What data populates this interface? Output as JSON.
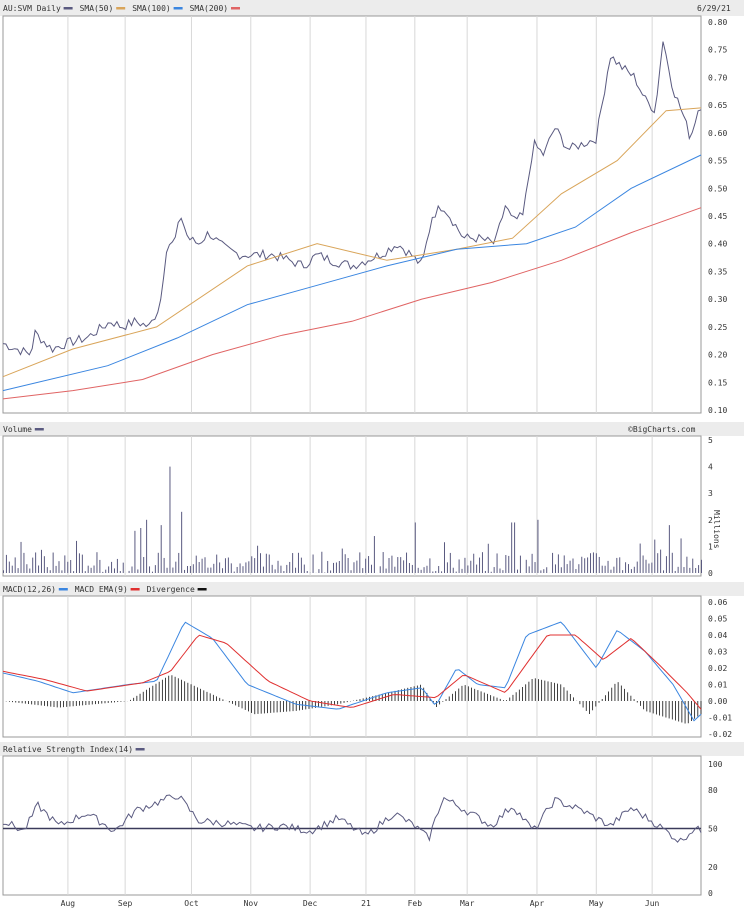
{
  "date_label": "6/29/21",
  "watermark": "©BigCharts.com",
  "colors": {
    "price": "#5a5a80",
    "sma50": "#5a5a80",
    "sma100": "#d9a55a",
    "sma200": "#3b86e0",
    "sma_red": "#e06464",
    "macd": "#3b86e0",
    "ema": "#e03030",
    "divergence": "#111111",
    "grid": "#d8d8d8",
    "header_bg": "#ececec",
    "axis_ref": "#3a3a5a"
  },
  "months": [
    "Aug",
    "Sep",
    "Oct",
    "Nov",
    "Dec",
    "21",
    "Feb",
    "Mar",
    "Apr",
    "May",
    "Jun"
  ],
  "price_panel": {
    "header": [
      {
        "label": "AU:SVM Daily",
        "color_key": "price"
      },
      {
        "label": "SMA(50)",
        "color_key": "sma100"
      },
      {
        "label": "SMA(100)",
        "color_key": "sma200"
      },
      {
        "label": "SMA(200)",
        "color_key": "sma_red"
      }
    ],
    "yticks": [
      "0.80",
      "0.75",
      "0.70",
      "0.65",
      "0.60",
      "0.55",
      "0.50",
      "0.45",
      "0.40",
      "0.35",
      "0.30",
      "0.25",
      "0.20",
      "0.15",
      "0.10"
    ]
  },
  "volume_panel": {
    "header": [
      {
        "label": "Volume",
        "color_key": "price"
      }
    ],
    "yticks": [
      "5",
      "4",
      "3",
      "2",
      "1",
      "0"
    ],
    "unit": "Millions"
  },
  "macd_panel": {
    "header": [
      {
        "label": "MACD(12,26)",
        "color_key": "macd"
      },
      {
        "label": "MACD EMA(9)",
        "color_key": "ema"
      },
      {
        "label": "Divergence",
        "color_key": "divergence"
      }
    ],
    "yticks": [
      "0.06",
      "0.05",
      "0.04",
      "0.03",
      "0.02",
      "0.01",
      "0.00",
      "-0.01",
      "-0.02"
    ]
  },
  "rsi_panel": {
    "header": [
      {
        "label": "Relative Strength Index(14)",
        "color_key": "price"
      }
    ],
    "yticks": [
      "100",
      "80",
      "50",
      "20",
      "0"
    ]
  },
  "chart_data": [
    {
      "type": "line",
      "title": "AU:SVM Daily",
      "x_range": [
        "2020-07",
        "2021-06-29"
      ],
      "ylim": [
        0.1,
        0.8
      ],
      "grid": true,
      "series": [
        {
          "name": "AU:SVM Daily",
          "points": [
            [
              0,
              0.22
            ],
            [
              0.04,
              0.2
            ],
            [
              0.045,
              0.24
            ],
            [
              0.07,
              0.21
            ],
            [
              0.09,
              0.22
            ],
            [
              0.12,
              0.23
            ],
            [
              0.155,
              0.26
            ],
            [
              0.17,
              0.25
            ],
            [
              0.19,
              0.26
            ],
            [
              0.21,
              0.25
            ],
            [
              0.225,
              0.29
            ],
            [
              0.235,
              0.4
            ],
            [
              0.245,
              0.4
            ],
            [
              0.255,
              0.45
            ],
            [
              0.265,
              0.41
            ],
            [
              0.28,
              0.4
            ],
            [
              0.295,
              0.42
            ],
            [
              0.31,
              0.4
            ],
            [
              0.32,
              0.39
            ],
            [
              0.34,
              0.38
            ],
            [
              0.365,
              0.38
            ],
            [
              0.385,
              0.38
            ],
            [
              0.41,
              0.37
            ],
            [
              0.43,
              0.36
            ],
            [
              0.45,
              0.38
            ],
            [
              0.47,
              0.37
            ],
            [
              0.5,
              0.36
            ],
            [
              0.52,
              0.37
            ],
            [
              0.54,
              0.38
            ],
            [
              0.565,
              0.4
            ],
            [
              0.585,
              0.38
            ],
            [
              0.6,
              0.36
            ],
            [
              0.615,
              0.45
            ],
            [
              0.63,
              0.47
            ],
            [
              0.645,
              0.44
            ],
            [
              0.66,
              0.41
            ],
            [
              0.68,
              0.41
            ],
            [
              0.705,
              0.4
            ],
            [
              0.72,
              0.47
            ],
            [
              0.73,
              0.44
            ],
            [
              0.745,
              0.45
            ],
            [
              0.76,
              0.58
            ],
            [
              0.775,
              0.56
            ],
            [
              0.79,
              0.61
            ],
            [
              0.81,
              0.57
            ],
            [
              0.83,
              0.58
            ],
            [
              0.85,
              0.59
            ],
            [
              0.87,
              0.74
            ],
            [
              0.885,
              0.72
            ],
            [
              0.905,
              0.7
            ],
            [
              0.92,
              0.66
            ],
            [
              0.935,
              0.64
            ],
            [
              0.945,
              0.77
            ],
            [
              0.96,
              0.68
            ],
            [
              0.975,
              0.63
            ],
            [
              0.985,
              0.59
            ],
            [
              0.995,
              0.64
            ],
            [
              1.0,
              0.65
            ]
          ]
        },
        {
          "name": "SMA(50)",
          "points": [
            [
              0,
              0.16
            ],
            [
              0.1,
              0.21
            ],
            [
              0.22,
              0.25
            ],
            [
              0.35,
              0.36
            ],
            [
              0.45,
              0.4
            ],
            [
              0.55,
              0.37
            ],
            [
              0.65,
              0.39
            ],
            [
              0.73,
              0.41
            ],
            [
              0.8,
              0.49
            ],
            [
              0.88,
              0.55
            ],
            [
              0.95,
              0.64
            ],
            [
              1.0,
              0.645
            ]
          ]
        },
        {
          "name": "SMA(100)",
          "points": [
            [
              0,
              0.135
            ],
            [
              0.15,
              0.18
            ],
            [
              0.25,
              0.23
            ],
            [
              0.35,
              0.29
            ],
            [
              0.45,
              0.325
            ],
            [
              0.55,
              0.36
            ],
            [
              0.65,
              0.39
            ],
            [
              0.75,
              0.4
            ],
            [
              0.82,
              0.43
            ],
            [
              0.9,
              0.5
            ],
            [
              1.0,
              0.56
            ]
          ]
        },
        {
          "name": "SMA(200)",
          "points": [
            [
              0,
              0.12
            ],
            [
              0.1,
              0.135
            ],
            [
              0.2,
              0.155
            ],
            [
              0.3,
              0.2
            ],
            [
              0.4,
              0.235
            ],
            [
              0.5,
              0.26
            ],
            [
              0.6,
              0.3
            ],
            [
              0.7,
              0.33
            ],
            [
              0.8,
              0.37
            ],
            [
              0.9,
              0.42
            ],
            [
              1.0,
              0.465
            ]
          ]
        }
      ]
    },
    {
      "type": "bar",
      "title": "Volume",
      "ylim": [
        0,
        5
      ],
      "ylabel": "Millions",
      "peaks": [
        [
          0.237,
          4.0
        ],
        [
          0.255,
          2.3
        ],
        [
          0.205,
          2.0
        ],
        [
          0.225,
          1.8
        ],
        [
          0.59,
          1.9
        ],
        [
          0.73,
          1.9
        ],
        [
          0.765,
          2.0
        ],
        [
          0.955,
          1.8
        ],
        [
          0.97,
          1.3
        ]
      ],
      "base_level": 0.4
    },
    {
      "type": "line",
      "title": "MACD(12,26)",
      "ylim": [
        -0.02,
        0.06
      ],
      "series": [
        {
          "name": "MACD(12,26)",
          "points": [
            [
              0,
              0.017
            ],
            [
              0.05,
              0.012
            ],
            [
              0.1,
              0.005
            ],
            [
              0.18,
              0.01
            ],
            [
              0.22,
              0.012
            ],
            [
              0.26,
              0.048
            ],
            [
              0.3,
              0.038
            ],
            [
              0.35,
              0.01
            ],
            [
              0.42,
              -0.002
            ],
            [
              0.48,
              -0.005
            ],
            [
              0.55,
              0.005
            ],
            [
              0.6,
              0.008
            ],
            [
              0.62,
              -0.003
            ],
            [
              0.65,
              0.02
            ],
            [
              0.68,
              0.01
            ],
            [
              0.72,
              0.008
            ],
            [
              0.75,
              0.04
            ],
            [
              0.8,
              0.048
            ],
            [
              0.85,
              0.02
            ],
            [
              0.88,
              0.043
            ],
            [
              0.92,
              0.03
            ],
            [
              0.96,
              0.01
            ],
            [
              0.99,
              -0.012
            ],
            [
              1.0,
              -0.008
            ]
          ]
        },
        {
          "name": "MACD EMA(9)",
          "points": [
            [
              0,
              0.018
            ],
            [
              0.06,
              0.013
            ],
            [
              0.12,
              0.006
            ],
            [
              0.2,
              0.011
            ],
            [
              0.24,
              0.018
            ],
            [
              0.28,
              0.04
            ],
            [
              0.32,
              0.035
            ],
            [
              0.38,
              0.012
            ],
            [
              0.44,
              0.0
            ],
            [
              0.5,
              -0.004
            ],
            [
              0.56,
              0.004
            ],
            [
              0.62,
              0.002
            ],
            [
              0.66,
              0.016
            ],
            [
              0.72,
              0.005
            ],
            [
              0.78,
              0.04
            ],
            [
              0.82,
              0.04
            ],
            [
              0.86,
              0.025
            ],
            [
              0.9,
              0.038
            ],
            [
              0.94,
              0.022
            ],
            [
              0.98,
              0.005
            ],
            [
              1.0,
              -0.005
            ]
          ]
        },
        {
          "name": "Divergence",
          "points": [
            [
              0,
              0.0
            ],
            [
              0.08,
              -0.004
            ],
            [
              0.18,
              0.0
            ],
            [
              0.24,
              0.016
            ],
            [
              0.3,
              0.004
            ],
            [
              0.36,
              -0.008
            ],
            [
              0.42,
              -0.006
            ],
            [
              0.48,
              -0.002
            ],
            [
              0.54,
              0.004
            ],
            [
              0.6,
              0.01
            ],
            [
              0.62,
              -0.004
            ],
            [
              0.66,
              0.01
            ],
            [
              0.72,
              0.0
            ],
            [
              0.76,
              0.014
            ],
            [
              0.8,
              0.01
            ],
            [
              0.84,
              -0.008
            ],
            [
              0.88,
              0.012
            ],
            [
              0.92,
              -0.006
            ],
            [
              0.98,
              -0.014
            ],
            [
              1.0,
              -0.008
            ]
          ]
        }
      ]
    },
    {
      "type": "line",
      "title": "Relative Strength Index(14)",
      "ylim": [
        0,
        100
      ],
      "reference": 50,
      "series": [
        {
          "name": "Relative Strength Index(14)",
          "points": [
            [
              0,
              56
            ],
            [
              0.03,
              48
            ],
            [
              0.05,
              68
            ],
            [
              0.08,
              52
            ],
            [
              0.12,
              62
            ],
            [
              0.16,
              48
            ],
            [
              0.19,
              64
            ],
            [
              0.23,
              72
            ],
            [
              0.25,
              76
            ],
            [
              0.28,
              56
            ],
            [
              0.32,
              54
            ],
            [
              0.36,
              50
            ],
            [
              0.4,
              52
            ],
            [
              0.44,
              48
            ],
            [
              0.48,
              58
            ],
            [
              0.52,
              44
            ],
            [
              0.56,
              62
            ],
            [
              0.59,
              52
            ],
            [
              0.61,
              42
            ],
            [
              0.63,
              74
            ],
            [
              0.67,
              62
            ],
            [
              0.7,
              52
            ],
            [
              0.73,
              68
            ],
            [
              0.76,
              48
            ],
            [
              0.79,
              72
            ],
            [
              0.83,
              64
            ],
            [
              0.87,
              52
            ],
            [
              0.9,
              66
            ],
            [
              0.94,
              52
            ],
            [
              0.97,
              40
            ],
            [
              0.99,
              50
            ],
            [
              1.0,
              48
            ]
          ]
        }
      ]
    }
  ]
}
